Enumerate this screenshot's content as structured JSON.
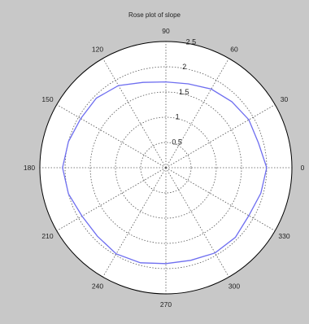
{
  "chart_data": {
    "type": "line",
    "projection": "polar",
    "title": "Rose plot of slope",
    "theta_unit": "degrees",
    "angle_ticks": [
      0,
      30,
      60,
      90,
      120,
      150,
      180,
      210,
      240,
      270,
      300,
      330
    ],
    "radial_ticks": [
      0.5,
      1,
      1.5,
      2,
      2.5
    ],
    "radial_tick_labels": [
      "0.5",
      "1",
      "1.5",
      "2",
      "2.5"
    ],
    "rlim": [
      0,
      2.5
    ],
    "grid": true,
    "series": [
      {
        "color": "#6e6ef0",
        "theta": [
          0,
          15,
          30,
          45,
          60,
          75,
          90,
          105,
          120,
          135,
          150,
          165,
          180,
          195,
          210,
          225,
          240,
          255,
          270,
          285,
          300,
          315,
          330,
          345,
          360
        ],
        "r": [
          2.0,
          1.9,
          1.9,
          1.85,
          1.8,
          1.72,
          1.7,
          1.75,
          1.88,
          1.95,
          1.95,
          2.0,
          2.05,
          2.0,
          1.92,
          1.92,
          1.97,
          1.95,
          1.9,
          1.9,
          1.95,
          1.95,
          1.9,
          1.95,
          2.0
        ]
      }
    ]
  }
}
